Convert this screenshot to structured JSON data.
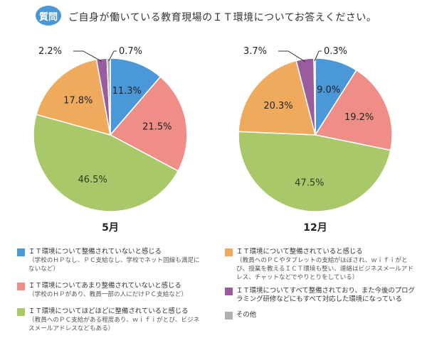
{
  "header": {
    "badge": "質問",
    "question": "ご自身が働いている教育現場のＩＴ環境についてお答えください。"
  },
  "colors": {
    "blue": "#4a98d8",
    "red": "#ee8e86",
    "green": "#a9c86a",
    "orange": "#efaa5e",
    "purple": "#9b5c9e",
    "gray": "#b0b0b0"
  },
  "chart_data": [
    {
      "type": "pie",
      "title": "5月",
      "categories": [
        "ＩＴ環境について整備されていないと感じる",
        "ＩＴ環境についてあまり整備されていないと感じる",
        "ＩＴ環境についてほどほどに整備されていると感じる",
        "ＩＴ環境について整備されていると感じる",
        "ＩＴ環境についてすべて整備されており、また今後のプログラミング研修などにもすべて対応した環境になっている",
        "その他"
      ],
      "values": [
        11.3,
        21.5,
        46.5,
        17.8,
        2.2,
        0.7
      ],
      "labels": [
        "11.3%",
        "21.5%",
        "46.5%",
        "17.8%",
        "2.2%",
        "0.7%"
      ]
    },
    {
      "type": "pie",
      "title": "12月",
      "categories": [
        "ＩＴ環境について整備されていないと感じる",
        "ＩＴ環境についてあまり整備されていないと感じる",
        "ＩＴ環境についてほどほどに整備されていると感じる",
        "ＩＴ環境について整備されていると感じる",
        "ＩＴ環境についてすべて整備されており、また今後のプログラミング研修などにもすべて対応した環境になっている",
        "その他"
      ],
      "values": [
        9.0,
        19.2,
        47.5,
        20.3,
        3.7,
        0.3
      ],
      "labels": [
        "9.0%",
        "19.2%",
        "47.5%",
        "20.3%",
        "3.7%",
        "0.3%"
      ]
    }
  ],
  "legend": [
    {
      "label": "ＩＴ環境について整備されていないと感じる",
      "sub": "（学校のＨＰなし、ＰＣ支給なし、学校でネット回線も満足にないなど）"
    },
    {
      "label": "ＩＴ環境についてあまり整備されていないと感じる",
      "sub": "（学校のＨＰがあり、教員一部の人にだけＰＣ支給など）"
    },
    {
      "label": "ＩＴ環境についてほどほどに整備されていると感じる",
      "sub": "（教員へのＰＣ支給がある程度あり、ｗｉｆｉがとび、ビジネスメールアドレスなどもある）"
    },
    {
      "label": "ＩＴ環境について整備されていると感じる",
      "sub": "（教員へのＰＣやタブレットの支給がほぼされ、ｗｉｆｉがとび、授業を教えるＩＣＴ環境も整い、連絡はビジネスメールアドレス、チャットなどでやりとりをしている）"
    },
    {
      "label": "ＩＴ環境についてすべて整備されており、また今後のプログラミング研修などにもすべて対応した環境になっている",
      "sub": ""
    },
    {
      "label": "その他",
      "sub": ""
    }
  ]
}
